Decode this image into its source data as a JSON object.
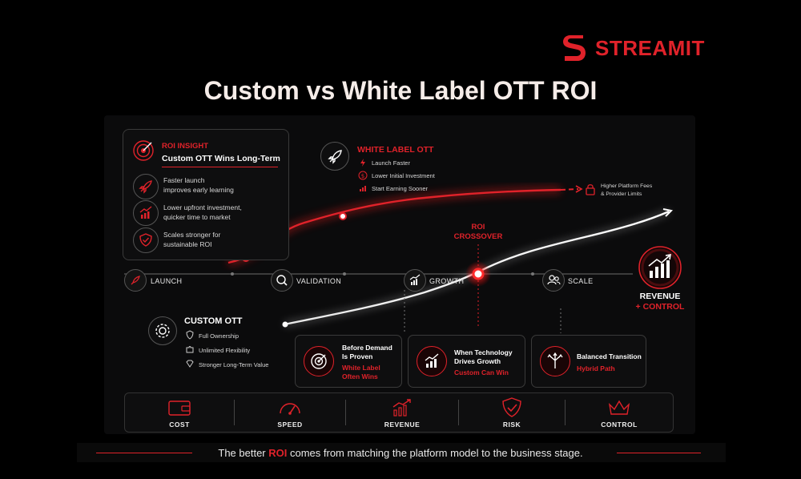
{
  "brand": {
    "name": "STREAMIT",
    "accent": "#e0222a"
  },
  "title": "Custom vs White Label OTT ROI",
  "roi_insight": {
    "tag": "ROI INSIGHT",
    "headline": "Custom OTT Wins Long-Term",
    "items": [
      {
        "icon": "rocket-icon",
        "line1": "Faster launch",
        "line2": "improves early learning"
      },
      {
        "icon": "chart-up-icon",
        "line1": "Lower upfront investment,",
        "line2": "quicker time to market"
      },
      {
        "icon": "shield-check-icon",
        "line1": "Scales stronger for",
        "line2": "sustainable ROI"
      }
    ]
  },
  "white_label": {
    "title": "WHITE LABEL OTT",
    "items": [
      "Launch Faster",
      "Lower Initial Investment",
      "Start Earning Sooner"
    ],
    "limit_line1": "Higher Platform Fees",
    "limit_line2": "& Provider Limits"
  },
  "crossover": {
    "line1": "ROI",
    "line2": "CROSSOVER"
  },
  "stages": [
    "LAUNCH",
    "VALIDATION",
    "GROWTH",
    "SCALE"
  ],
  "revenue": {
    "line1": "REVENUE",
    "line2": "+ CONTROL"
  },
  "custom_ott": {
    "title": "CUSTOM OTT",
    "items": [
      "Full Ownership",
      "Unlimited Flexibility",
      "Stronger Long-Term Value"
    ]
  },
  "scenarios": [
    {
      "icon": "target-icon",
      "title1": "Before Demand",
      "title2": "Is Proven",
      "red1": "White Label",
      "red2": "Often Wins"
    },
    {
      "icon": "bar-chart-icon",
      "title1": "When Technology",
      "title2": "Drives Growth",
      "red1": "Custom Can Win",
      "red2": ""
    },
    {
      "icon": "split-arrows-icon",
      "title1": "Balanced Transition",
      "title2": "",
      "red1": "Hybrid Path",
      "red2": ""
    }
  ],
  "metrics": [
    "COST",
    "SPEED",
    "REVENUE",
    "RISK",
    "CONTROL"
  ],
  "footer": {
    "pre": "The better ",
    "highlight": "ROI",
    "post": " comes from matching the platform model to the business stage."
  }
}
